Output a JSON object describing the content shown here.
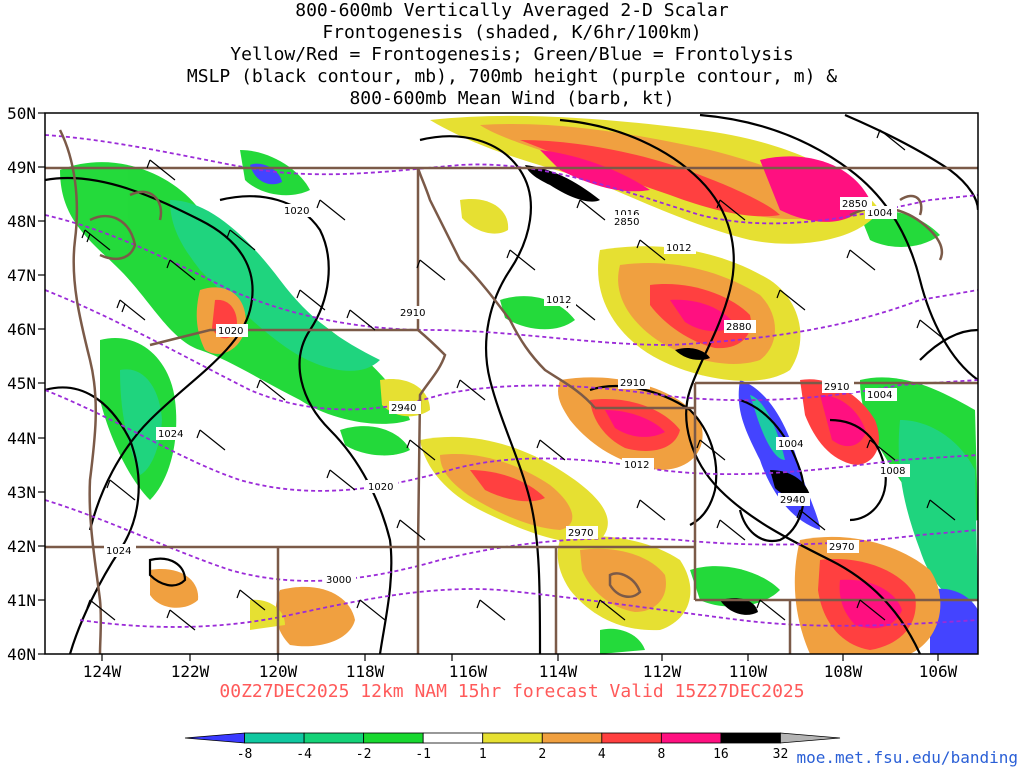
{
  "title_lines": [
    "800-600mb Vertically Averaged 2-D Scalar",
    "Frontogenesis (shaded, K/6hr/100km)",
    "Yellow/Red = Frontogenesis;  Green/Blue = Frontolysis",
    "MSLP (black contour, mb), 700mb height (purple contour, m) &",
    "800-600mb Mean Wind (barb, kt)"
  ],
  "lat_labels": [
    "50N",
    "49N",
    "48N",
    "47N",
    "46N",
    "45N",
    "44N",
    "43N",
    "42N",
    "41N",
    "40N"
  ],
  "lon_labels": [
    "124W",
    "122W",
    "120W",
    "118W",
    "116W",
    "114W",
    "112W",
    "110W",
    "108W",
    "106W"
  ],
  "mslp_labels": [
    "1020",
    "1020",
    "1024",
    "1020",
    "1024",
    "1012",
    "1016",
    "1012",
    "1004",
    "1004",
    "1004",
    "1008",
    "1012"
  ],
  "height_labels": [
    "2850",
    "2850",
    "2880",
    "2910",
    "2940",
    "2910",
    "2940",
    "2970",
    "2970",
    "3000",
    "2910"
  ],
  "forecast_line": "00Z27DEC2025 12km NAM 15hr forecast Valid 15Z27DEC2025",
  "colorbar": {
    "labels": [
      "-8",
      "-4",
      "-2",
      "-1",
      "1",
      "2",
      "4",
      "8",
      "16",
      "32"
    ],
    "colors": [
      "#3a3aff",
      "#10c8a0",
      "#14d278",
      "#18d830",
      "#ffffff",
      "#e6e032",
      "#f0a040",
      "#ff4040",
      "#ff1080",
      "#000000",
      "#b4b4b4"
    ]
  },
  "credit": "moe.met.fsu.edu/banding"
}
